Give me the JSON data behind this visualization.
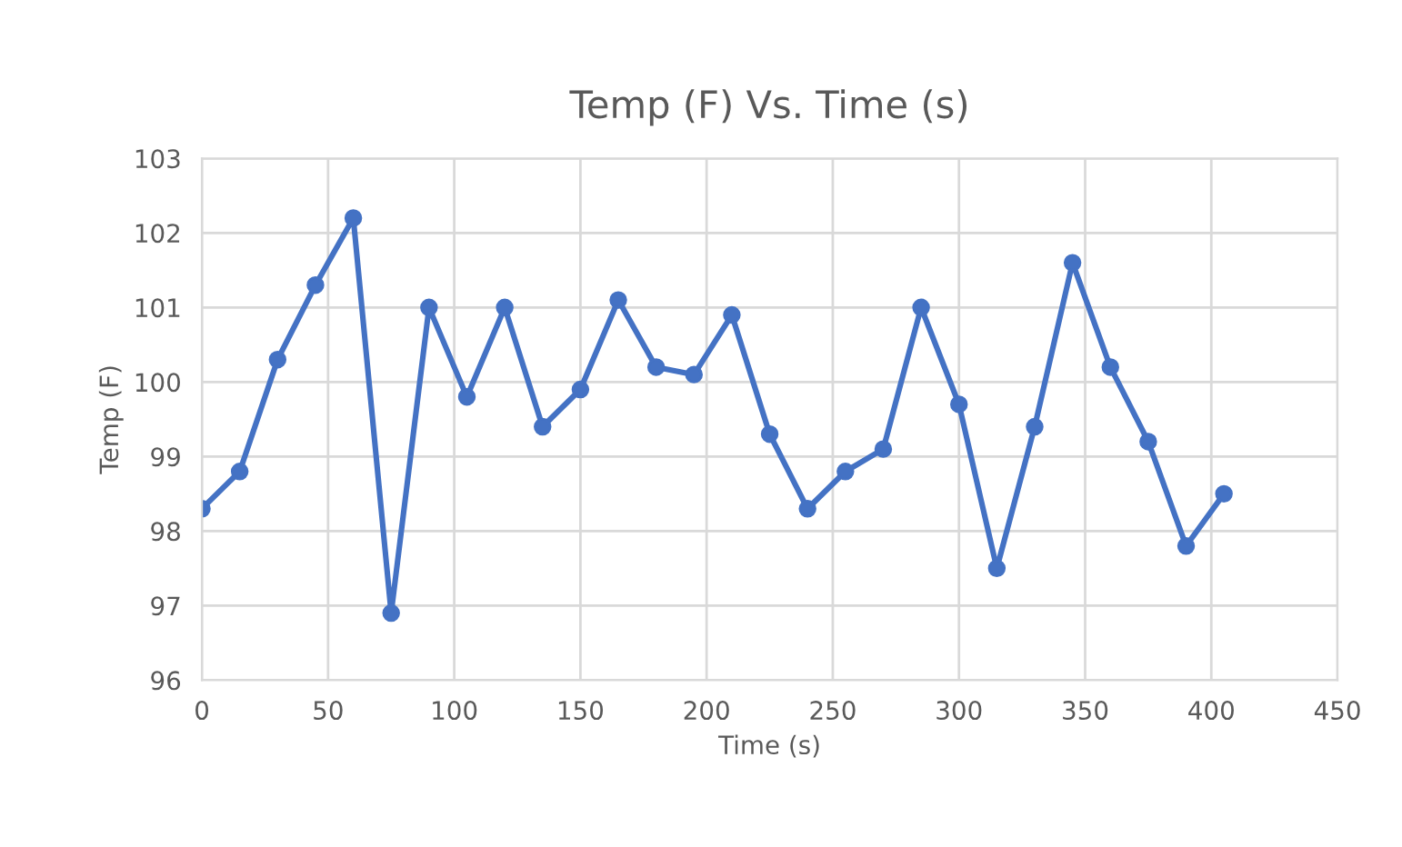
{
  "chart_data": {
    "type": "line",
    "title": "Temp (F) Vs. Time (s)",
    "xlabel": "Time (s)",
    "ylabel": "Temp (F)",
    "x": [
      0,
      15,
      30,
      45,
      60,
      75,
      90,
      105,
      120,
      135,
      150,
      165,
      180,
      195,
      210,
      225,
      240,
      255,
      270,
      285,
      300,
      315,
      330,
      345,
      360,
      375,
      390,
      405
    ],
    "series": [
      {
        "color": "#4472c4",
        "values": [
          98.3,
          98.8,
          100.3,
          101.3,
          102.2,
          96.9,
          101.0,
          99.8,
          101.0,
          99.4,
          99.9,
          101.1,
          100.2,
          100.1,
          100.9,
          99.3,
          98.3,
          98.8,
          99.1,
          101.0,
          99.7,
          97.5,
          99.4,
          101.6,
          100.2,
          99.2,
          97.8,
          98.5
        ]
      }
    ],
    "xlim": [
      0,
      450
    ],
    "xticks": [
      0,
      50,
      100,
      150,
      200,
      250,
      300,
      350,
      400,
      450
    ],
    "ylim": [
      96,
      103
    ],
    "yticks": [
      96,
      97,
      98,
      99,
      100,
      101,
      102,
      103
    ],
    "grid": true,
    "marker": "circle",
    "line_style": "solid",
    "legend": false
  }
}
